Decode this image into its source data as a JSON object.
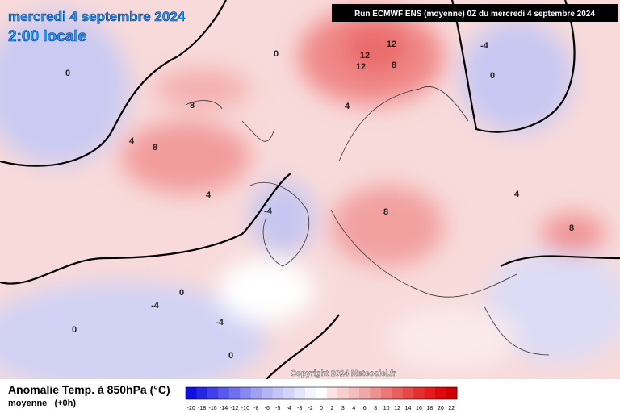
{
  "header": {
    "date": "mercredi 4 septembre 2024",
    "time": "2:00 locale",
    "run": "Run ECMWF ENS (moyenne) 0Z du mercredi 4 septembre 2024"
  },
  "copyright": "Copyright 2024 Meteociel.fr",
  "footer": {
    "title": "Anomalie Temp. à 850hPa (°C)",
    "subtitle": "moyenne   (+0h)"
  },
  "contour_labels": [
    12,
    12,
    12,
    8,
    8,
    8,
    8,
    8,
    4,
    4,
    4,
    4,
    0,
    0,
    0,
    0,
    -4,
    -4,
    -4,
    -4,
    0,
    0
  ],
  "colorbar": {
    "ticks": [
      -20,
      -18,
      -16,
      -14,
      -12,
      -10,
      -8,
      -6,
      -5,
      -4,
      -3,
      -2,
      0,
      2,
      3,
      4,
      6,
      8,
      10,
      12,
      14,
      16,
      18,
      20,
      22
    ],
    "colors": [
      "#1010e0",
      "#2828e4",
      "#4040e8",
      "#5858ec",
      "#7070ee",
      "#8888f0",
      "#a0a0f2",
      "#b4b4f4",
      "#c4c4f6",
      "#d4d4f8",
      "#e4e4fa",
      "#f4f4fc",
      "#ffffff",
      "#fce4e4",
      "#f8d0d0",
      "#f4bcbc",
      "#f0a8a8",
      "#ee9090",
      "#ec7878",
      "#ea6060",
      "#e84848",
      "#e63030",
      "#e41c1c",
      "#e00808",
      "#d00000"
    ]
  }
}
